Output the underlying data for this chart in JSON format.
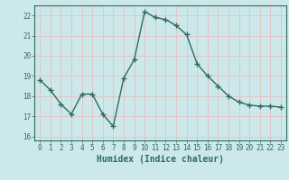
{
  "x": [
    0,
    1,
    2,
    3,
    4,
    5,
    6,
    7,
    8,
    9,
    10,
    11,
    12,
    13,
    14,
    15,
    16,
    17,
    18,
    19,
    20,
    21,
    22,
    23
  ],
  "y": [
    18.8,
    18.3,
    17.6,
    17.1,
    18.1,
    18.1,
    17.1,
    16.5,
    18.9,
    19.8,
    22.2,
    21.9,
    21.8,
    21.5,
    21.05,
    19.6,
    19.0,
    18.5,
    18.0,
    17.7,
    17.55,
    17.5,
    17.5,
    17.45
  ],
  "line_color": "#2e6b5e",
  "marker": "+",
  "marker_size": 4,
  "bg_color": "#cce8eb",
  "grid_color": "#b0d4d8",
  "xlabel": "Humidex (Indice chaleur)",
  "xlabel_fontsize": 7,
  "xlabel_color": "#2e6b5e",
  "tick_color": "#2e6b5e",
  "ylim": [
    15.8,
    22.5
  ],
  "xlim": [
    -0.5,
    23.5
  ],
  "yticks": [
    16,
    17,
    18,
    19,
    20,
    21,
    22
  ],
  "xtick_labels": [
    "0",
    "1",
    "2",
    "3",
    "4",
    "5",
    "6",
    "7",
    "8",
    "9",
    "10",
    "11",
    "12",
    "13",
    "14",
    "15",
    "16",
    "17",
    "18",
    "19",
    "20",
    "21",
    "22",
    "23"
  ],
  "tick_fontsize": 5.5,
  "linewidth": 1.0
}
